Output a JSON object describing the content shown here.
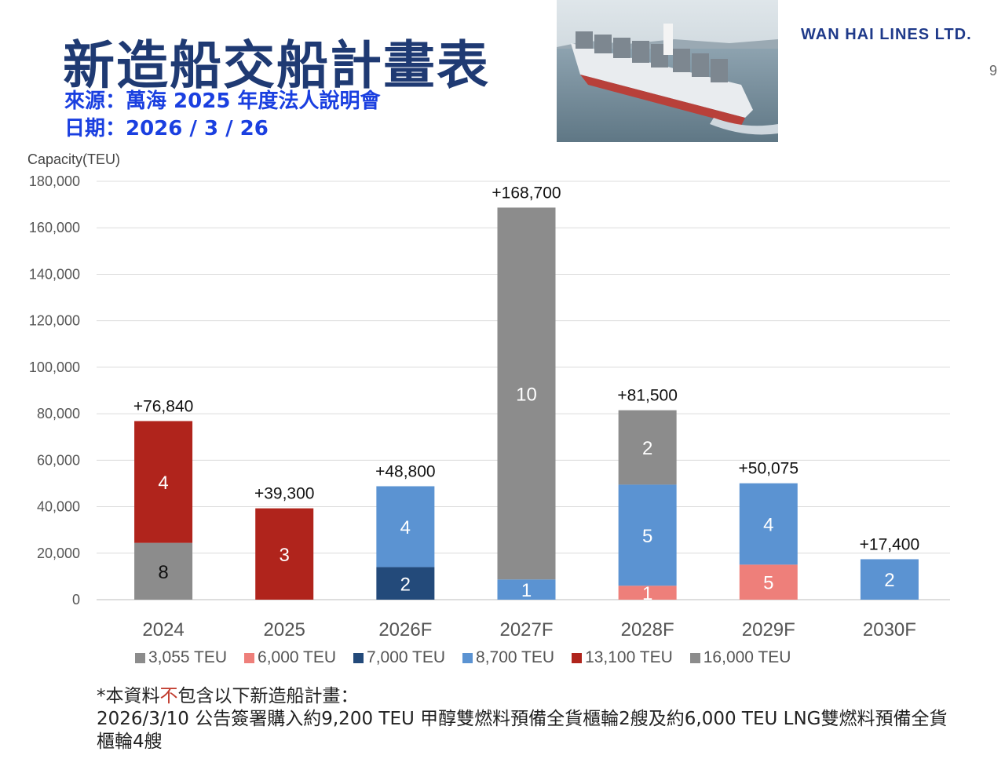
{
  "header": {
    "title": "新造船交船計畫表",
    "source_label": "來源：萬海 2025 年度法人說明會",
    "date_label": "日期：2026 / 3 / 26",
    "brand": "WAN HAI LINES LTD.",
    "page_number": "9"
  },
  "footnote": {
    "line1_prefix": "*本資料",
    "line1_emphasis": "不",
    "line1_suffix": "包含以下新造船計畫：",
    "line2": "2026/3/10 公告簽署購入約9,200 TEU 甲醇雙燃料預備全貨櫃輪2艘及約6,000 TEU LNG雙燃料預備全貨櫃輪4艘"
  },
  "colors": {
    "3,055 TEU": "#8c8c8c",
    "6,000 TEU": "#ee7f7a",
    "7,000 TEU": "#234a7a",
    "8,700 TEU": "#5b93d2",
    "13,100 TEU": "#b0241c",
    "16,000 TEU": "#8c8c8c"
  },
  "chart_data": {
    "type": "bar",
    "stacked": true,
    "ylabel": "Capacity(TEU)",
    "ylim": [
      0,
      180000
    ],
    "yticks": [
      "0",
      "20,000",
      "40,000",
      "60,000",
      "80,000",
      "100,000",
      "120,000",
      "140,000",
      "160,000",
      "180,000"
    ],
    "grid": true,
    "legend_position": "bottom",
    "categories": [
      "2024",
      "2025",
      "2026F",
      "2027F",
      "2028F",
      "2029F",
      "2030F"
    ],
    "totals": [
      "+76,840",
      "+39,300",
      "+48,800",
      "+168,700",
      "+81,500",
      "+50,075",
      "+17,400"
    ],
    "series": [
      {
        "name": "3,055 TEU",
        "values": [
          24440,
          0,
          0,
          0,
          0,
          0,
          0
        ],
        "ship_counts": [
          8,
          0,
          0,
          0,
          0,
          0,
          0
        ]
      },
      {
        "name": "6,000 TEU",
        "values": [
          0,
          0,
          0,
          0,
          6000,
          15075,
          0
        ],
        "ship_counts": [
          0,
          0,
          0,
          0,
          1,
          5,
          0
        ]
      },
      {
        "name": "7,000 TEU",
        "values": [
          0,
          0,
          14000,
          0,
          0,
          0,
          0
        ],
        "ship_counts": [
          0,
          0,
          2,
          0,
          0,
          0,
          0
        ]
      },
      {
        "name": "8,700 TEU",
        "values": [
          0,
          0,
          34800,
          8700,
          43500,
          35000,
          17400
        ],
        "ship_counts": [
          0,
          0,
          4,
          1,
          5,
          4,
          2
        ]
      },
      {
        "name": "13,100 TEU",
        "values": [
          52400,
          39300,
          0,
          0,
          0,
          0,
          0
        ],
        "ship_counts": [
          4,
          3,
          0,
          0,
          0,
          0,
          0
        ]
      },
      {
        "name": "16,000 TEU",
        "values": [
          0,
          0,
          0,
          160000,
          32000,
          0,
          0
        ],
        "ship_counts": [
          0,
          0,
          0,
          10,
          2,
          0,
          0
        ]
      }
    ]
  }
}
